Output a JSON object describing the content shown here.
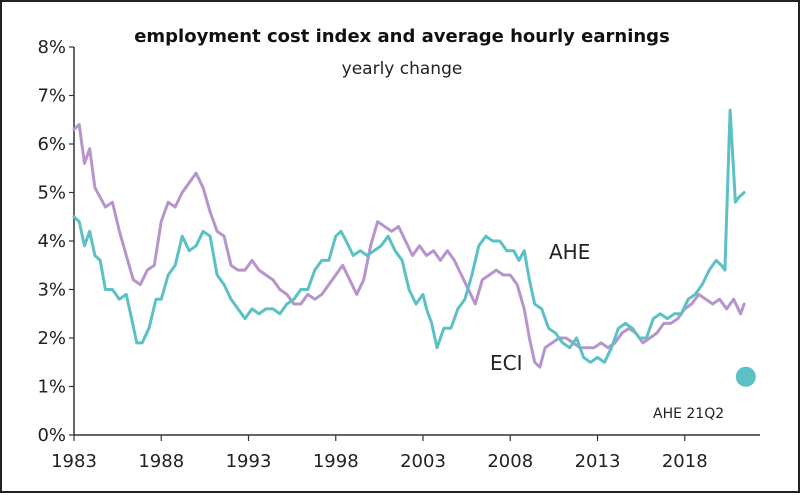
{
  "chart_data": {
    "type": "line",
    "title": "employment cost index and average hourly earnings",
    "subtitle": "yearly change",
    "xlabel": "",
    "ylabel": "",
    "xlim": [
      1983,
      2022
    ],
    "ylim": [
      0,
      8
    ],
    "y_ticks": [
      "0%",
      "1%",
      "2%",
      "3%",
      "4%",
      "5%",
      "6%",
      "7%",
      "8%"
    ],
    "x_ticks": [
      "1983",
      "1988",
      "1993",
      "1998",
      "2003",
      "2008",
      "2013",
      "2018"
    ],
    "grid": false,
    "series": [
      {
        "name": "AHE",
        "color": "#5cc1c4",
        "x": [
          1983.0,
          1983.3,
          1983.6,
          1983.9,
          1984.2,
          1984.5,
          1984.8,
          1985.2,
          1985.6,
          1986.0,
          1986.3,
          1986.6,
          1986.9,
          1987.3,
          1987.7,
          1988.0,
          1988.4,
          1988.8,
          1989.2,
          1989.6,
          1990.0,
          1990.4,
          1990.8,
          1991.2,
          1991.6,
          1992.0,
          1992.4,
          1992.8,
          1993.2,
          1993.6,
          1994.0,
          1994.4,
          1994.8,
          1995.2,
          1995.6,
          1996.0,
          1996.4,
          1996.8,
          1997.2,
          1997.6,
          1998.0,
          1998.3,
          1998.6,
          1999.0,
          1999.4,
          1999.8,
          2000.2,
          2000.6,
          2001.0,
          2001.4,
          2001.8,
          2002.2,
          2002.6,
          2003.0,
          2003.2,
          2003.5,
          2003.8,
          2004.2,
          2004.6,
          2005.0,
          2005.4,
          2005.8,
          2006.2,
          2006.6,
          2007.0,
          2007.4,
          2007.8,
          2008.2,
          2008.5,
          2008.8,
          2009.1,
          2009.4,
          2009.8,
          2010.2,
          2010.6,
          2011.0,
          2011.4,
          2011.8,
          2012.2,
          2012.6,
          2013.0,
          2013.4,
          2013.8,
          2014.2,
          2014.6,
          2015.0,
          2015.4,
          2015.8,
          2016.2,
          2016.6,
          2017.0,
          2017.4,
          2017.8,
          2018.2,
          2018.6,
          2019.0,
          2019.4,
          2019.8,
          2020.1,
          2020.3,
          2020.6,
          2020.9,
          2021.1,
          2021.4
        ],
        "values": [
          4.5,
          4.4,
          3.9,
          4.2,
          3.7,
          3.6,
          3.0,
          3.0,
          2.8,
          2.9,
          2.4,
          1.9,
          1.9,
          2.2,
          2.8,
          2.8,
          3.3,
          3.5,
          4.1,
          3.8,
          3.9,
          4.2,
          4.1,
          3.3,
          3.1,
          2.8,
          2.6,
          2.4,
          2.6,
          2.5,
          2.6,
          2.6,
          2.5,
          2.7,
          2.8,
          3.0,
          3.0,
          3.4,
          3.6,
          3.6,
          4.1,
          4.2,
          4.0,
          3.7,
          3.8,
          3.7,
          3.8,
          3.9,
          4.1,
          3.8,
          3.6,
          3.0,
          2.7,
          2.9,
          2.6,
          2.3,
          1.8,
          2.2,
          2.2,
          2.6,
          2.8,
          3.3,
          3.9,
          4.1,
          4.0,
          4.0,
          3.8,
          3.8,
          3.6,
          3.8,
          3.2,
          2.7,
          2.6,
          2.2,
          2.1,
          1.9,
          1.8,
          2.0,
          1.6,
          1.5,
          1.6,
          1.5,
          1.8,
          2.2,
          2.3,
          2.2,
          2.0,
          2.0,
          2.4,
          2.5,
          2.4,
          2.5,
          2.5,
          2.8,
          2.9,
          3.1,
          3.4,
          3.6,
          3.5,
          3.4,
          6.7,
          4.8,
          4.9,
          5.0
        ]
      },
      {
        "name": "ECI",
        "color": "#b795cc",
        "x": [
          1983.0,
          1983.3,
          1983.6,
          1983.9,
          1984.2,
          1984.5,
          1984.8,
          1985.2,
          1985.6,
          1986.0,
          1986.4,
          1986.8,
          1987.2,
          1987.6,
          1988.0,
          1988.4,
          1988.8,
          1989.2,
          1989.6,
          1990.0,
          1990.4,
          1990.8,
          1991.2,
          1991.6,
          1992.0,
          1992.4,
          1992.8,
          1993.2,
          1993.6,
          1994.0,
          1994.4,
          1994.8,
          1995.2,
          1995.6,
          1996.0,
          1996.4,
          1996.8,
          1997.2,
          1997.6,
          1998.0,
          1998.4,
          1998.8,
          1999.2,
          1999.6,
          2000.0,
          2000.4,
          2000.8,
          2001.2,
          2001.6,
          2002.0,
          2002.4,
          2002.8,
          2003.2,
          2003.6,
          2004.0,
          2004.4,
          2004.8,
          2005.2,
          2005.6,
          2006.0,
          2006.4,
          2006.8,
          2007.2,
          2007.6,
          2008.0,
          2008.4,
          2008.8,
          2009.1,
          2009.4,
          2009.7,
          2010.0,
          2010.4,
          2010.8,
          2011.2,
          2011.6,
          2012.0,
          2012.4,
          2012.8,
          2013.2,
          2013.6,
          2014.0,
          2014.4,
          2014.8,
          2015.2,
          2015.6,
          2016.0,
          2016.4,
          2016.8,
          2017.2,
          2017.6,
          2018.0,
          2018.4,
          2018.8,
          2019.2,
          2019.6,
          2020.0,
          2020.4,
          2020.8,
          2021.2,
          2021.4
        ],
        "values": [
          6.3,
          6.4,
          5.6,
          5.9,
          5.1,
          4.9,
          4.7,
          4.8,
          4.2,
          3.7,
          3.2,
          3.1,
          3.4,
          3.5,
          4.4,
          4.8,
          4.7,
          5.0,
          5.2,
          5.4,
          5.1,
          4.6,
          4.2,
          4.1,
          3.5,
          3.4,
          3.4,
          3.6,
          3.4,
          3.3,
          3.2,
          3.0,
          2.9,
          2.7,
          2.7,
          2.9,
          2.8,
          2.9,
          3.1,
          3.3,
          3.5,
          3.2,
          2.9,
          3.2,
          3.9,
          4.4,
          4.3,
          4.2,
          4.3,
          4.0,
          3.7,
          3.9,
          3.7,
          3.8,
          3.6,
          3.8,
          3.6,
          3.3,
          3.0,
          2.7,
          3.2,
          3.3,
          3.4,
          3.3,
          3.3,
          3.1,
          2.6,
          2.0,
          1.5,
          1.4,
          1.8,
          1.9,
          2.0,
          2.0,
          1.9,
          1.8,
          1.8,
          1.8,
          1.9,
          1.8,
          1.9,
          2.1,
          2.2,
          2.1,
          1.9,
          2.0,
          2.1,
          2.3,
          2.3,
          2.4,
          2.6,
          2.7,
          2.9,
          2.8,
          2.7,
          2.8,
          2.6,
          2.8,
          2.5,
          2.7
        ]
      }
    ],
    "point": {
      "label": "AHE 21Q2",
      "x": 2021.5,
      "y": 1.2,
      "color": "#5cc1c4"
    },
    "labels": {
      "ahe": "AHE",
      "eci": "ECI"
    }
  }
}
